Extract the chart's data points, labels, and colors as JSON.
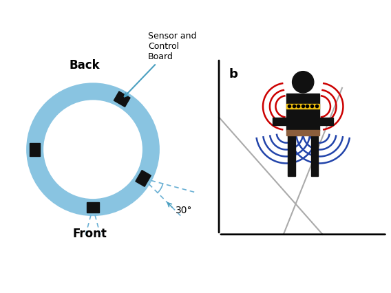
{
  "bg_color": "#ffffff",
  "belt_color": "#89c4e1",
  "belt_lw": 18,
  "sensor_color": "#111111",
  "back_label": "Back",
  "front_label": "Front",
  "sensor_board_label": "Sensor and\nControl\nBoard",
  "angle_label": "30°",
  "panel_b_label": "b",
  "red_color": "#cc0000",
  "blue_color": "#2244aa",
  "belt_yellow": "#f0c010",
  "belt_brown": "#8B5E3C",
  "figure_color": "#111111",
  "axis_color": "#888888"
}
